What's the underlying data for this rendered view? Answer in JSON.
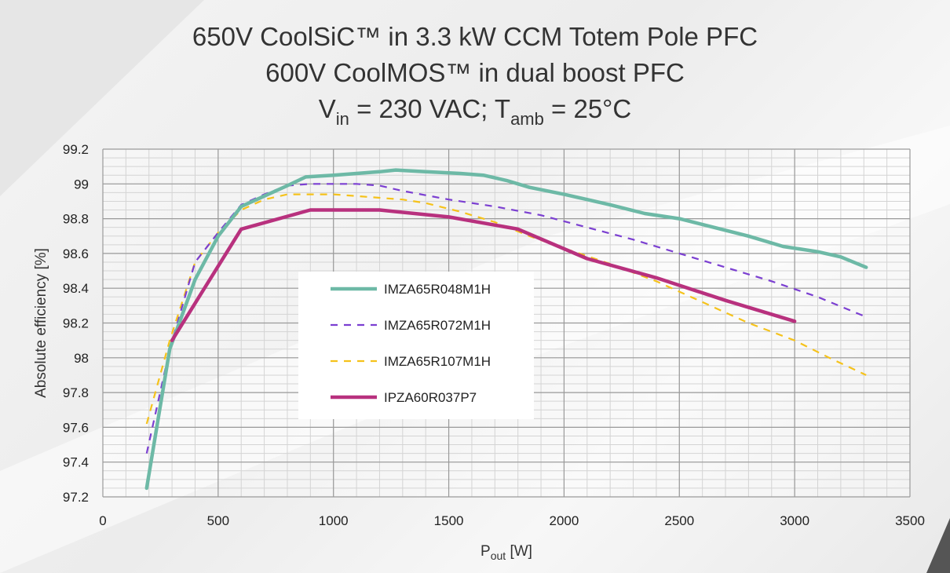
{
  "chart_data": {
    "type": "line",
    "title_lines": [
      "650V CoolSiC™ in 3.3 kW CCM Totem Pole PFC",
      "600V CoolMOS™ in dual boost PFC"
    ],
    "title_line3": {
      "v": "V",
      "v_sub": "in",
      "mid": " = 230 VAC; T",
      "t_sub": "amb",
      "end": " = 25°C"
    },
    "xlabel": {
      "main": "P",
      "sub": "out",
      "unit": " [W]"
    },
    "ylabel": "Absolute efficiency [%]",
    "xlim": [
      0,
      3500
    ],
    "ylim": [
      97.2,
      99.2
    ],
    "xticks": [
      0,
      500,
      1000,
      1500,
      2000,
      2500,
      3000,
      3500
    ],
    "yticks": [
      97.2,
      97.4,
      97.6,
      97.8,
      98,
      98.2,
      98.4,
      98.6,
      98.8,
      99,
      99.2
    ],
    "ytick_labels": [
      "97.2",
      "97.4",
      "97.6",
      "97.8",
      "98",
      "98.2",
      "98.4",
      "98.6",
      "98.8",
      "99",
      "99.2"
    ],
    "xtick_labels": [
      "0",
      "500",
      "1000",
      "1500",
      "2000",
      "2500",
      "3000",
      "3500"
    ],
    "grid": true,
    "legend_position": "center-left",
    "series": [
      {
        "name": "IMZA65R048M1H",
        "color": "#6db9a6",
        "style": "solid",
        "x": [
          190,
          290,
          400,
          500,
          600,
          700,
          800,
          880,
          1000,
          1100,
          1200,
          1270,
          1400,
          1550,
          1650,
          1750,
          1850,
          2000,
          2100,
          2200,
          2350,
          2500,
          2650,
          2800,
          2950,
          3100,
          3200,
          3310
        ],
        "y": [
          97.25,
          98.05,
          98.45,
          98.7,
          98.87,
          98.93,
          98.99,
          99.04,
          99.05,
          99.06,
          99.07,
          99.08,
          99.07,
          99.06,
          99.05,
          99.02,
          98.98,
          98.94,
          98.91,
          98.88,
          98.83,
          98.8,
          98.75,
          98.7,
          98.64,
          98.61,
          98.58,
          98.52
        ]
      },
      {
        "name": "IMZA65R072M1H",
        "color": "#7b3fd1",
        "style": "dashed",
        "x": [
          190,
          290,
          400,
          500,
          600,
          700,
          800,
          900,
          1000,
          1100,
          1200,
          1300,
          1500,
          1700,
          1900,
          2100,
          2300,
          2500,
          2700,
          2900,
          3100,
          3300
        ],
        "y": [
          97.45,
          98.05,
          98.55,
          98.72,
          98.88,
          98.94,
          98.99,
          99.0,
          99.0,
          99.0,
          98.99,
          98.96,
          98.91,
          98.87,
          98.82,
          98.75,
          98.68,
          98.6,
          98.52,
          98.44,
          98.35,
          98.24
        ]
      },
      {
        "name": "IMZA65R107M1H",
        "color": "#f5c21b",
        "style": "dashed",
        "x": [
          190,
          290,
          400,
          500,
          600,
          700,
          800,
          900,
          1000,
          1100,
          1200,
          1300,
          1400,
          1550,
          1700,
          1850,
          2000,
          2200,
          2400,
          2600,
          2800,
          3000,
          3150,
          3310
        ],
        "y": [
          97.62,
          98.1,
          98.55,
          98.72,
          98.85,
          98.91,
          98.94,
          98.94,
          98.94,
          98.93,
          98.92,
          98.91,
          98.89,
          98.84,
          98.78,
          98.7,
          98.63,
          98.54,
          98.44,
          98.32,
          98.2,
          98.1,
          98.0,
          97.9
        ]
      },
      {
        "name": "IPZA60R037P7",
        "color": "#b8317e",
        "style": "solid",
        "x": [
          300,
          600,
          900,
          1200,
          1500,
          1800,
          2100,
          2400,
          2700,
          3000
        ],
        "y": [
          98.1,
          98.74,
          98.85,
          98.85,
          98.81,
          98.74,
          98.57,
          98.46,
          98.33,
          98.21
        ]
      }
    ]
  }
}
